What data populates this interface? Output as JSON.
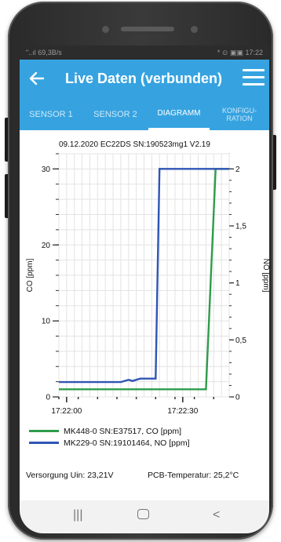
{
  "statusbar": {
    "left": "\"..ıl 69,3B/s",
    "right": "* ⊙ ▣▣ 17:22"
  },
  "appbar": {
    "title": "Live Daten (verbunden)"
  },
  "tabs": [
    {
      "label": "SENSOR 1"
    },
    {
      "label": "SENSOR 2"
    },
    {
      "label": "DIAGRAMM"
    },
    {
      "label": "KONFIGU-\nRATION"
    }
  ],
  "chart": {
    "header": "09.12.2020   EC22DS   SN:190523mg1   V2.19"
  },
  "chart_data": {
    "type": "line",
    "title": "09.12.2020   EC22DS   SN:190523mg1   V2.19",
    "ylabel": "CO [ppm]",
    "y2label": "NO [ppm]",
    "ylim": [
      0,
      32
    ],
    "y2lim": [
      0,
      2.133
    ],
    "yticks": [
      0,
      10,
      20,
      30
    ],
    "y2ticks": [
      0,
      0.5,
      1,
      1.5,
      2
    ],
    "y2ticklabels": [
      "0",
      "0,5",
      "1",
      "1,5",
      "2"
    ],
    "xlim": [
      0,
      44
    ],
    "xticks": [
      2,
      32
    ],
    "xticklabels": [
      "17:22:00",
      "17:22:30"
    ],
    "grid": true,
    "series": [
      {
        "name": "MK448-0 SN:E37517, CO [ppm]",
        "color": "#2e9c4a",
        "axis": "left",
        "x": [
          0,
          38,
          40.5,
          44
        ],
        "y": [
          1,
          1,
          30,
          30
        ]
      },
      {
        "name": "MK229-0 SN:19101464, NO [ppm]",
        "color": "#2f55b5",
        "axis": "right",
        "x": [
          0,
          16,
          18,
          19,
          21,
          25,
          26,
          44
        ],
        "y": [
          0.13,
          0.13,
          0.15,
          0.14,
          0.16,
          0.16,
          2,
          2
        ]
      }
    ]
  },
  "footer": {
    "supply": "Versorgung Uin:  23,21V",
    "pcb": "PCB-Temperatur:  25,2°C"
  },
  "navbar": {
    "recent": "|||",
    "back": "<"
  }
}
